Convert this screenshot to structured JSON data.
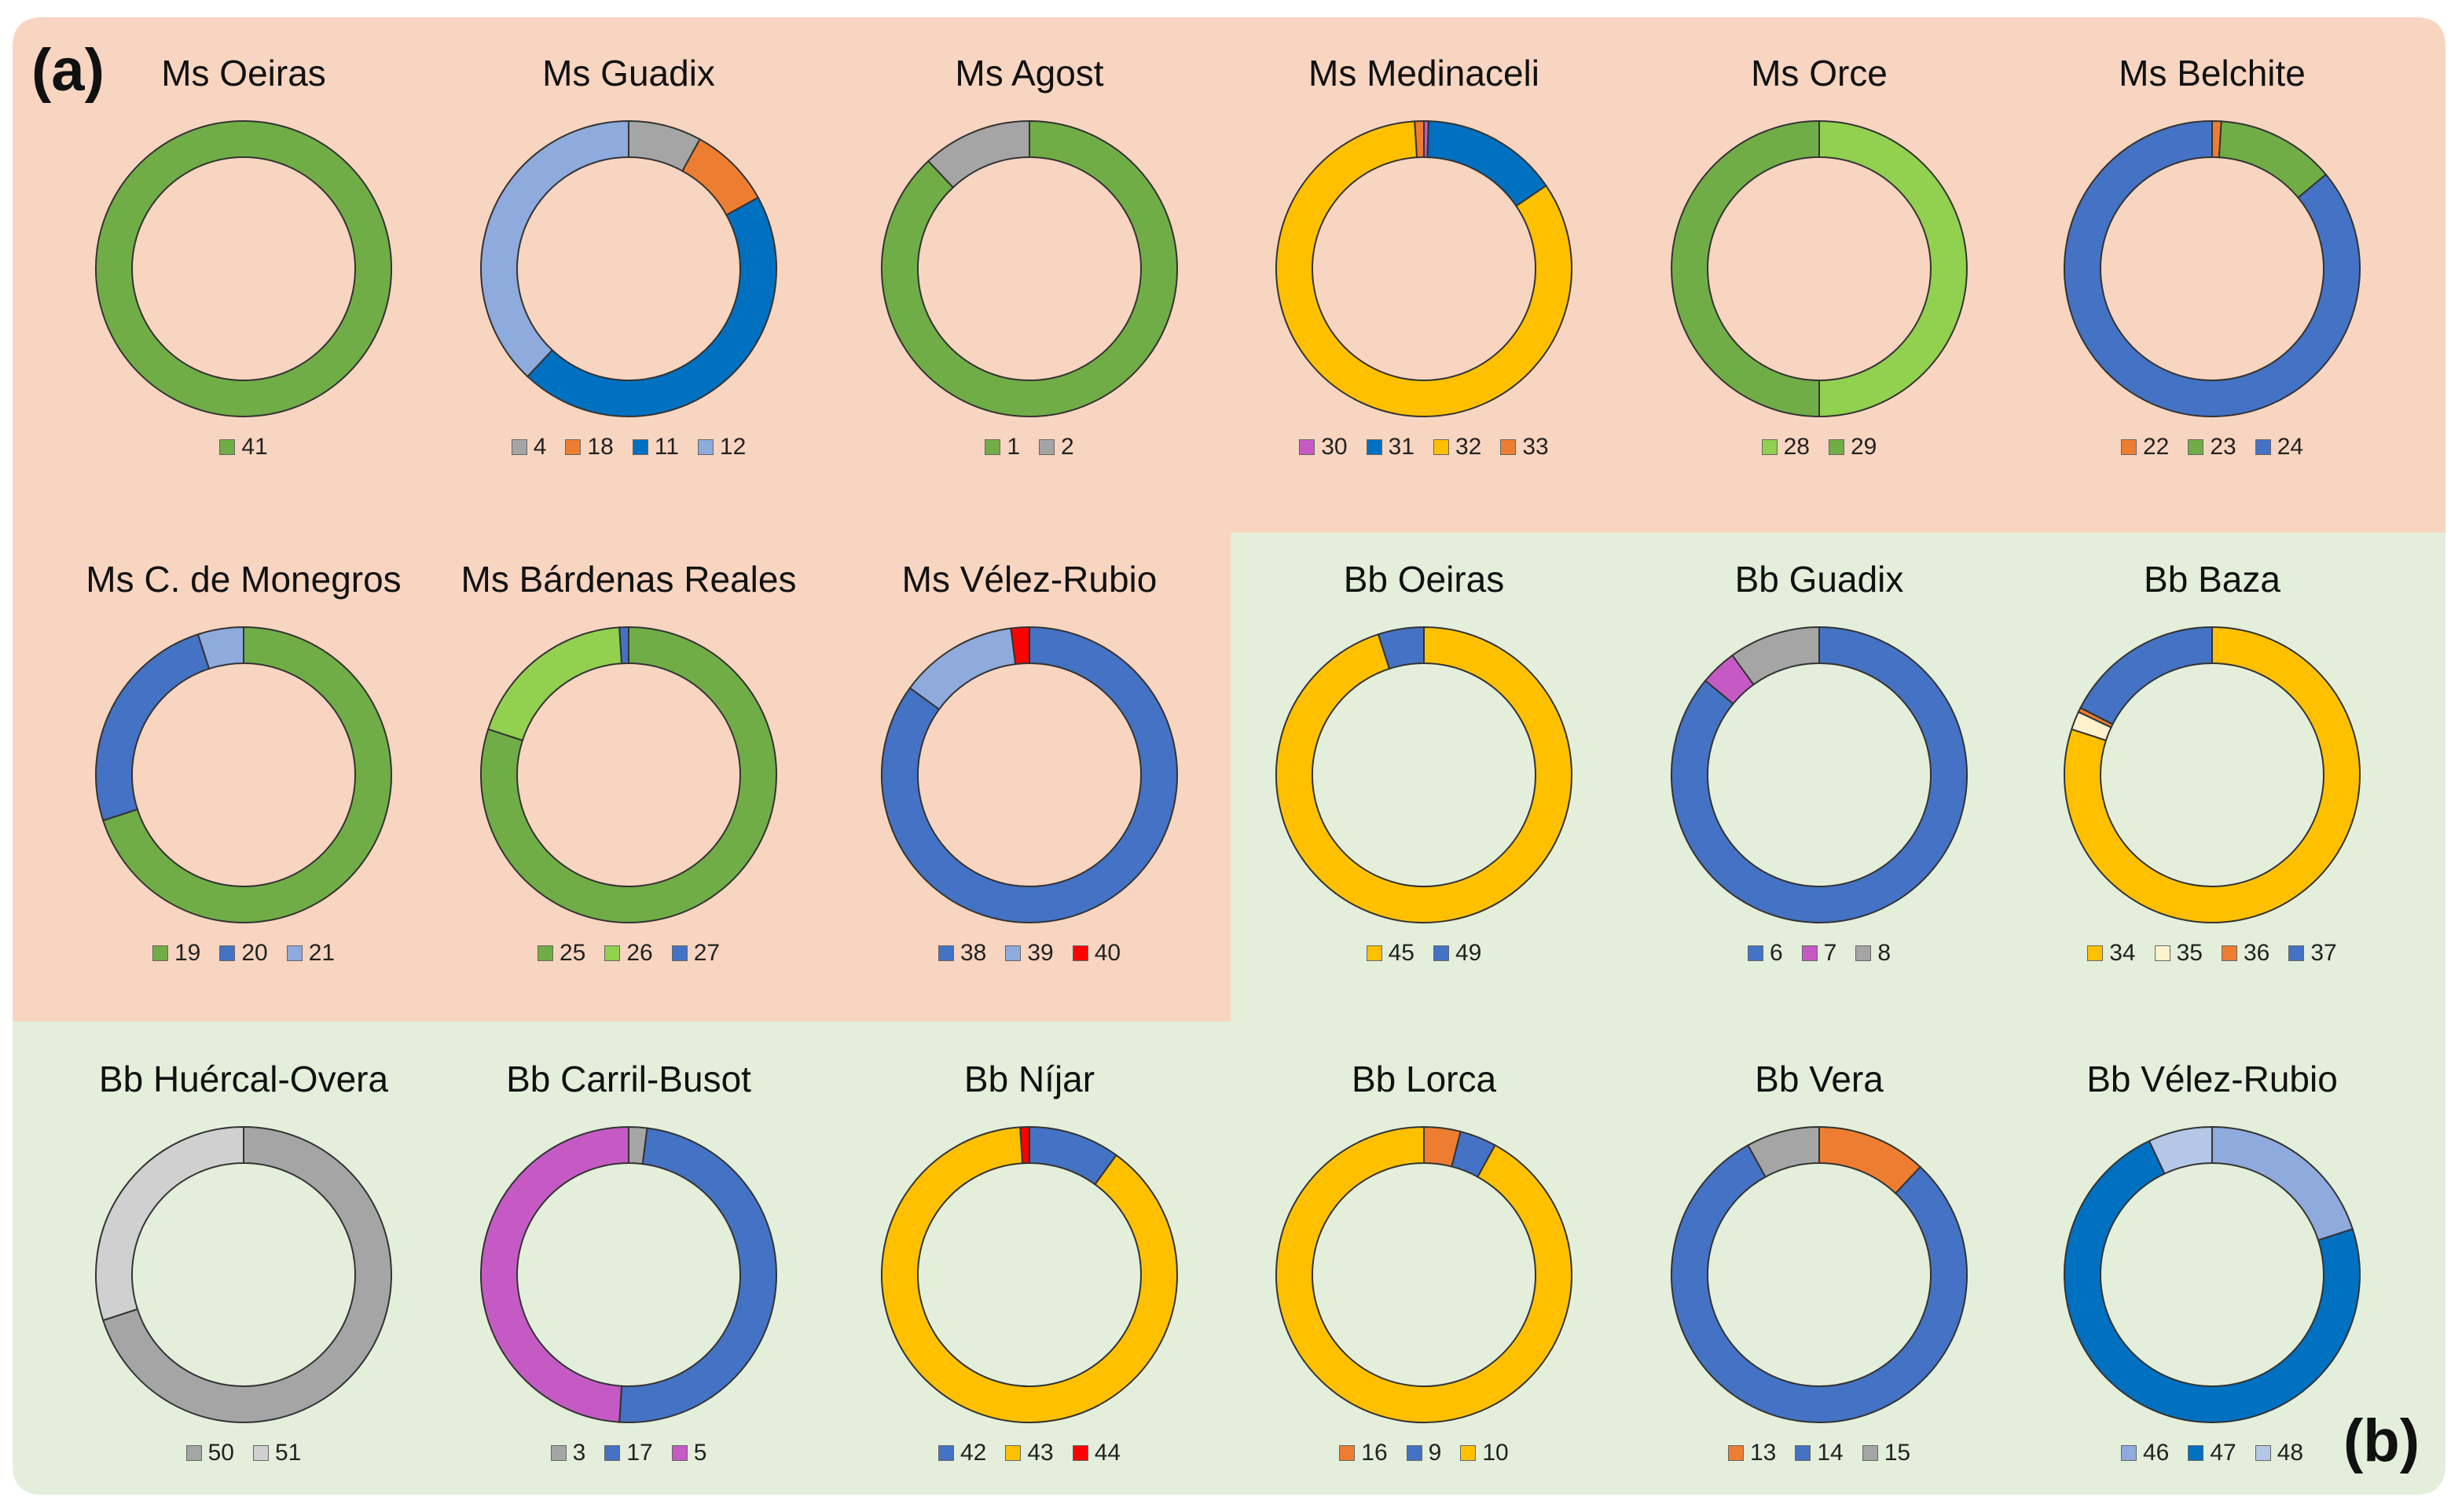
{
  "panel_labels": {
    "a": "(a)",
    "b": "(b)"
  },
  "colors": {
    "panel_a_bg": "#f8d5c0",
    "panel_b_bg": "#e3efda",
    "outline": "#333333"
  },
  "chart_data": [
    {
      "type": "pie",
      "subtype": "donut",
      "panel": "a",
      "title": "Ms Oeiras",
      "slices": [
        {
          "label": "41",
          "value": 100,
          "color": "#70ad47"
        }
      ]
    },
    {
      "type": "pie",
      "subtype": "donut",
      "panel": "a",
      "title": "Ms Guadix",
      "slices": [
        {
          "label": "4",
          "value": 8,
          "color": "#a5a5a5"
        },
        {
          "label": "18",
          "value": 9,
          "color": "#ed7d31"
        },
        {
          "label": "11",
          "value": 45,
          "color": "#0070c0"
        },
        {
          "label": "12",
          "value": 38,
          "color": "#8faadc"
        }
      ]
    },
    {
      "type": "pie",
      "subtype": "donut",
      "panel": "a",
      "title": "Ms Agost",
      "slices": [
        {
          "label": "1",
          "value": 88,
          "color": "#70ad47"
        },
        {
          "label": "2",
          "value": 12,
          "color": "#a5a5a5"
        }
      ]
    },
    {
      "type": "pie",
      "subtype": "donut",
      "panel": "a",
      "title": "Ms Medinaceli",
      "slices": [
        {
          "label": "30",
          "value": 0.5,
          "color": "#c55ac5"
        },
        {
          "label": "31",
          "value": 15,
          "color": "#0070c0"
        },
        {
          "label": "32",
          "value": 83.5,
          "color": "#ffc000"
        },
        {
          "label": "33",
          "value": 1,
          "color": "#ed7d31"
        }
      ]
    },
    {
      "type": "pie",
      "subtype": "donut",
      "panel": "a",
      "title": "Ms Orce",
      "slices": [
        {
          "label": "28",
          "value": 50,
          "color": "#92d050"
        },
        {
          "label": "29",
          "value": 50,
          "color": "#70ad47"
        }
      ]
    },
    {
      "type": "pie",
      "subtype": "donut",
      "panel": "a",
      "title": "Ms Belchite",
      "slices": [
        {
          "label": "22",
          "value": 1,
          "color": "#ed7d31"
        },
        {
          "label": "23",
          "value": 13,
          "color": "#70ad47"
        },
        {
          "label": "24",
          "value": 86,
          "color": "#4472c4"
        }
      ]
    },
    {
      "type": "pie",
      "subtype": "donut",
      "panel": "a",
      "title": "Ms C. de Monegros",
      "slices": [
        {
          "label": "19",
          "value": 70,
          "color": "#70ad47"
        },
        {
          "label": "20",
          "value": 25,
          "color": "#4472c4"
        },
        {
          "label": "21",
          "value": 5,
          "color": "#8faadc"
        }
      ]
    },
    {
      "type": "pie",
      "subtype": "donut",
      "panel": "a",
      "title": "Ms Bárdenas Reales",
      "slices": [
        {
          "label": "25",
          "value": 80,
          "color": "#70ad47"
        },
        {
          "label": "26",
          "value": 19,
          "color": "#92d050"
        },
        {
          "label": "27",
          "value": 1,
          "color": "#4472c4"
        }
      ]
    },
    {
      "type": "pie",
      "subtype": "donut",
      "panel": "a",
      "title": "Ms Vélez-Rubio",
      "slices": [
        {
          "label": "38",
          "value": 85,
          "color": "#4472c4"
        },
        {
          "label": "39",
          "value": 13,
          "color": "#8faadc"
        },
        {
          "label": "40",
          "value": 2,
          "color": "#ff0000"
        }
      ]
    },
    {
      "type": "pie",
      "subtype": "donut",
      "panel": "b",
      "title": "Bb Oeiras",
      "slices": [
        {
          "label": "45",
          "value": 95,
          "color": "#ffc000"
        },
        {
          "label": "49",
          "value": 5,
          "color": "#4472c4"
        }
      ]
    },
    {
      "type": "pie",
      "subtype": "donut",
      "panel": "b",
      "title": "Bb Guadix",
      "slices": [
        {
          "label": "6",
          "value": 86,
          "color": "#4472c4"
        },
        {
          "label": "7",
          "value": 4,
          "color": "#c55ac5"
        },
        {
          "label": "8",
          "value": 10,
          "color": "#a5a5a5"
        }
      ]
    },
    {
      "type": "pie",
      "subtype": "donut",
      "panel": "b",
      "title": "Bb Baza",
      "slices": [
        {
          "label": "34",
          "value": 80,
          "color": "#ffc000"
        },
        {
          "label": "35",
          "value": 2,
          "color": "#fff2cc"
        },
        {
          "label": "36",
          "value": 0.5,
          "color": "#ed7d31"
        },
        {
          "label": "37",
          "value": 17.5,
          "color": "#4472c4"
        }
      ]
    },
    {
      "type": "pie",
      "subtype": "donut",
      "panel": "b",
      "title": "Bb Huércal-Overa",
      "slices": [
        {
          "label": "50",
          "value": 70,
          "color": "#a5a5a5"
        },
        {
          "label": "51",
          "value": 30,
          "color": "#d0d0d0"
        }
      ]
    },
    {
      "type": "pie",
      "subtype": "donut",
      "panel": "b",
      "title": "Bb Carril-Busot",
      "slices": [
        {
          "label": "3",
          "value": 2,
          "color": "#a5a5a5"
        },
        {
          "label": "17",
          "value": 49,
          "color": "#4472c4"
        },
        {
          "label": "5",
          "value": 49,
          "color": "#c55ac5"
        }
      ]
    },
    {
      "type": "pie",
      "subtype": "donut",
      "panel": "b",
      "title": "Bb Níjar",
      "slices": [
        {
          "label": "42",
          "value": 10,
          "color": "#4472c4"
        },
        {
          "label": "43",
          "value": 89,
          "color": "#ffc000"
        },
        {
          "label": "44",
          "value": 1,
          "color": "#ff0000"
        }
      ]
    },
    {
      "type": "pie",
      "subtype": "donut",
      "panel": "b",
      "title": "Bb Lorca",
      "slices": [
        {
          "label": "16",
          "value": 4,
          "color": "#ed7d31"
        },
        {
          "label": "9",
          "value": 4,
          "color": "#4472c4"
        },
        {
          "label": "10",
          "value": 92,
          "color": "#ffc000"
        }
      ]
    },
    {
      "type": "pie",
      "subtype": "donut",
      "panel": "b",
      "title": "Bb Vera",
      "slices": [
        {
          "label": "13",
          "value": 12,
          "color": "#ed7d31"
        },
        {
          "label": "14",
          "value": 80,
          "color": "#4472c4"
        },
        {
          "label": "15",
          "value": 8,
          "color": "#a5a5a5"
        }
      ]
    },
    {
      "type": "pie",
      "subtype": "donut",
      "panel": "b",
      "title": "Bb Vélez-Rubio",
      "slices": [
        {
          "label": "46",
          "value": 20,
          "color": "#8faadc"
        },
        {
          "label": "47",
          "value": 73,
          "color": "#0070c0"
        },
        {
          "label": "48",
          "value": 7,
          "color": "#b4c7e7"
        }
      ]
    }
  ]
}
